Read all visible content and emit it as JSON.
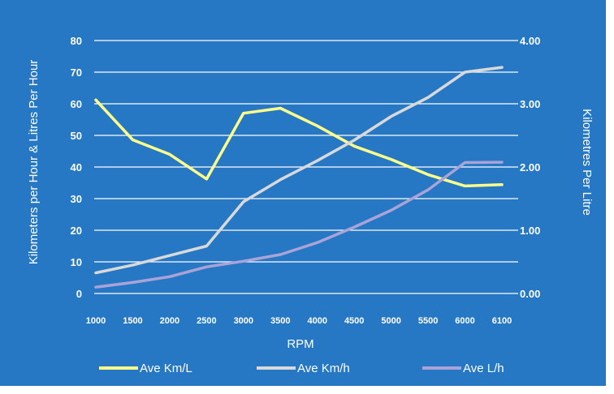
{
  "chart_data": {
    "type": "line",
    "title": "",
    "categories": [
      "1000",
      "1500",
      "2000",
      "2500",
      "3000",
      "3500",
      "4000",
      "4500",
      "5000",
      "5500",
      "6000",
      "6100"
    ],
    "xlabel": "RPM",
    "ylabel_left": "Kilometers per Hour & Litres Per Hour",
    "ylabel_right": "Kilometres Per Litre",
    "y_left": {
      "range": [
        0,
        80
      ],
      "ticks": [
        "0",
        "10",
        "20",
        "30",
        "40",
        "50",
        "60",
        "70",
        "80"
      ]
    },
    "y_right": {
      "range": [
        0,
        4
      ],
      "ticks": [
        "0.00",
        "1.00",
        "2.00",
        "3.00",
        "4.00"
      ]
    },
    "grid": true,
    "legend_position": "bottom",
    "background_color": "#2678c4",
    "series": [
      {
        "name": "Ave Km/L",
        "axis": "right",
        "color": "#ffff8a",
        "values": [
          3.06,
          2.43,
          2.2,
          1.81,
          2.85,
          2.93,
          2.65,
          2.33,
          2.12,
          1.88,
          1.7,
          1.72
        ]
      },
      {
        "name": "Ave Km/h",
        "axis": "left",
        "color": "#d9d9d9",
        "values": [
          6.5,
          9,
          12,
          15,
          29,
          36,
          42,
          48.5,
          56,
          62,
          70,
          71.5
        ]
      },
      {
        "name": "Ave L/h",
        "axis": "left",
        "color": "#a9a3d8",
        "values": [
          2,
          3.5,
          5.3,
          8.4,
          10.2,
          12.3,
          16.1,
          21,
          26.3,
          32.8,
          41.4,
          41.5
        ]
      }
    ]
  }
}
